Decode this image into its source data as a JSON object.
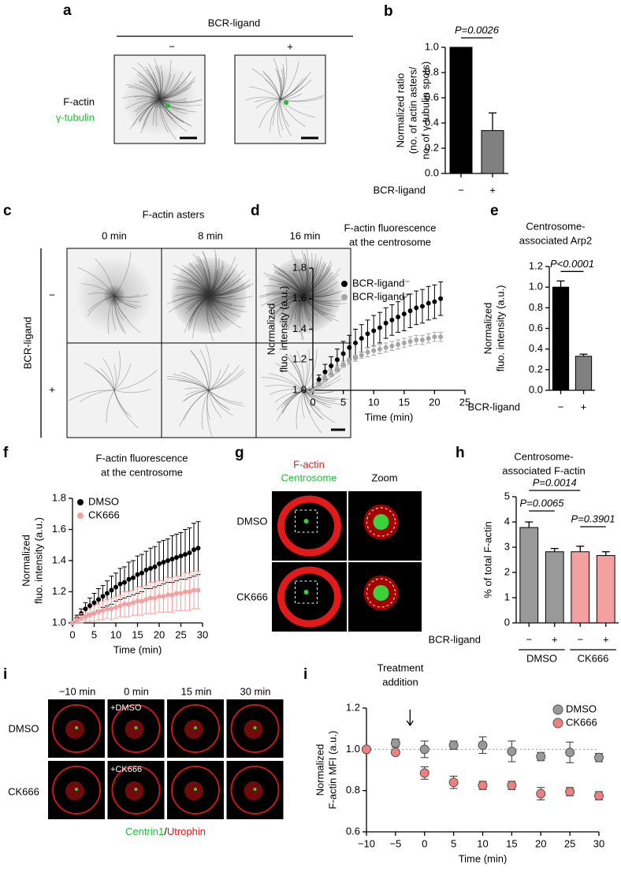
{
  "panels": {
    "a": {
      "letter": "a",
      "heading": "BCR-ligand",
      "conditions": [
        "−",
        "+"
      ],
      "stain1": "F-actin",
      "stain2": "γ-tubulin"
    },
    "c": {
      "letter": "c",
      "title": "F-actin asters",
      "times": [
        "0 min",
        "8 min",
        "16 min"
      ],
      "row_label": "BCR-ligand",
      "rows": [
        "−",
        "+"
      ]
    },
    "g": {
      "letter": "g",
      "stain1": "F-actin",
      "stain2": "Centrosome",
      "zoom": "Zoom",
      "rows": [
        "DMSO",
        "CK666"
      ]
    },
    "i": {
      "letter": "i",
      "times": [
        "−10 min",
        "0 min",
        "15 min",
        "30 min"
      ],
      "treatments": [
        "+DMSO",
        "+CK666"
      ],
      "rows": [
        "DMSO",
        "CK666"
      ],
      "stain1": "Centrin1",
      "separator": "/",
      "stain2": "Utrophin"
    }
  },
  "chart_data": [
    {
      "letter": "b",
      "type": "bar",
      "ylabel": [
        "Normalized ratio",
        "(no. of actin asters/",
        "no. of γ-tubulin spots)"
      ],
      "xlabel": "BCR-ligand",
      "categories": [
        "−",
        "+"
      ],
      "values": [
        1.0,
        0.34
      ],
      "errors": [
        0,
        0.14
      ],
      "colors": [
        "#000000",
        "#808080"
      ],
      "ylim": [
        0,
        1.0
      ],
      "yticks": [
        {
          "value": 0,
          "label": "0.0"
        },
        0.2,
        0.4,
        0.6,
        0.8,
        {
          "value": 1.0,
          "label": "1.0"
        }
      ],
      "annotations": [
        "P=0.0026"
      ]
    },
    {
      "letter": "d",
      "type": "scatter",
      "title": [
        "F-actin fluorescence",
        "at the centrosome"
      ],
      "xlabel": "Time (min)",
      "ylabel": [
        "Normalized",
        "fluo. intensity (a.u.)"
      ],
      "x": [
        0,
        1,
        2,
        3,
        4,
        5,
        6,
        7,
        8,
        9,
        10,
        11,
        12,
        13,
        14,
        15,
        16,
        17,
        18,
        19,
        20,
        21
      ],
      "series": [
        {
          "name": "BCR-ligand⁻",
          "color": "#000000",
          "values": [
            1.0,
            1.07,
            1.12,
            1.16,
            1.2,
            1.24,
            1.28,
            1.31,
            1.34,
            1.37,
            1.39,
            1.41,
            1.44,
            1.46,
            1.48,
            1.5,
            1.52,
            1.54,
            1.55,
            1.57,
            1.58,
            1.6
          ],
          "errors": [
            0,
            0.03,
            0.05,
            0.06,
            0.07,
            0.08,
            0.08,
            0.09,
            0.09,
            0.09,
            0.1,
            0.1,
            0.1,
            0.1,
            0.1,
            0.11,
            0.11,
            0.11,
            0.11,
            0.11,
            0.11,
            0.11
          ]
        },
        {
          "name": "BCR-ligand⁺",
          "color": "#a6a6a6",
          "values": [
            1.0,
            1.04,
            1.08,
            1.11,
            1.14,
            1.17,
            1.19,
            1.21,
            1.23,
            1.25,
            1.26,
            1.27,
            1.28,
            1.29,
            1.3,
            1.31,
            1.32,
            1.33,
            1.33,
            1.34,
            1.35,
            1.35
          ],
          "errors": [
            0,
            0.01,
            0.02,
            0.02,
            0.02,
            0.02,
            0.02,
            0.02,
            0.02,
            0.03,
            0.03,
            0.03,
            0.03,
            0.03,
            0.03,
            0.03,
            0.03,
            0.03,
            0.03,
            0.03,
            0.03,
            0.03
          ]
        }
      ],
      "xlim": [
        0,
        25
      ],
      "xticks": [
        0,
        5,
        10,
        15,
        20,
        25
      ],
      "ylim": [
        1.0,
        1.8
      ],
      "yticks": [
        {
          "value": 1.0,
          "label": "1.0"
        },
        1.2,
        1.4,
        1.6,
        1.8
      ],
      "legend": "upper left"
    },
    {
      "letter": "e",
      "type": "bar",
      "title": [
        "Centrosome-",
        "associated Arp2"
      ],
      "ylabel": [
        "Normalized",
        "fluo. intensity (a.u.)"
      ],
      "xlabel": "BCR-ligand",
      "categories": [
        "−",
        "+"
      ],
      "values": [
        1.0,
        0.33
      ],
      "errors": [
        0.06,
        0.02
      ],
      "colors": [
        "#000000",
        "#808080"
      ],
      "ylim": [
        0,
        1.2
      ],
      "yticks": [
        {
          "value": 0,
          "label": "0.0"
        },
        0.2,
        0.4,
        0.6,
        0.8,
        {
          "value": 1.0,
          "label": "1.0"
        },
        1.2
      ],
      "annotations": [
        "P<0.0001"
      ]
    },
    {
      "letter": "f",
      "type": "scatter",
      "title": [
        "F-actin fluorescence",
        "at the centrosome"
      ],
      "xlabel": "Time (min)",
      "ylabel": [
        "Normalized",
        "fluo. intensity (a.u.)"
      ],
      "x": [
        0,
        1,
        2,
        3,
        4,
        5,
        6,
        7,
        8,
        9,
        10,
        11,
        12,
        13,
        14,
        15,
        16,
        17,
        18,
        19,
        20,
        21,
        22,
        23,
        24,
        25,
        26,
        27,
        28,
        29
      ],
      "series": [
        {
          "name": "DMSO",
          "color": "#000000",
          "values": [
            1.0,
            1.03,
            1.06,
            1.09,
            1.11,
            1.13,
            1.15,
            1.17,
            1.19,
            1.21,
            1.23,
            1.25,
            1.26,
            1.28,
            1.29,
            1.31,
            1.32,
            1.34,
            1.35,
            1.36,
            1.38,
            1.39,
            1.4,
            1.41,
            1.42,
            1.43,
            1.44,
            1.45,
            1.47,
            1.48
          ],
          "errors": [
            0,
            0.02,
            0.03,
            0.04,
            0.05,
            0.06,
            0.07,
            0.07,
            0.08,
            0.09,
            0.09,
            0.1,
            0.1,
            0.11,
            0.11,
            0.12,
            0.12,
            0.12,
            0.13,
            0.13,
            0.14,
            0.14,
            0.14,
            0.15,
            0.15,
            0.15,
            0.16,
            0.16,
            0.17,
            0.17
          ]
        },
        {
          "name": "CK666",
          "color": "#f4a0a0",
          "values": [
            1.0,
            1.02,
            1.03,
            1.04,
            1.05,
            1.06,
            1.07,
            1.08,
            1.09,
            1.09,
            1.1,
            1.11,
            1.12,
            1.12,
            1.13,
            1.14,
            1.14,
            1.15,
            1.16,
            1.16,
            1.17,
            1.17,
            1.18,
            1.18,
            1.19,
            1.19,
            1.2,
            1.2,
            1.21,
            1.21
          ],
          "errors": [
            0,
            0.02,
            0.03,
            0.03,
            0.04,
            0.05,
            0.05,
            0.06,
            0.06,
            0.07,
            0.07,
            0.07,
            0.08,
            0.08,
            0.08,
            0.09,
            0.09,
            0.09,
            0.1,
            0.1,
            0.1,
            0.1,
            0.11,
            0.11,
            0.11,
            0.11,
            0.12,
            0.12,
            0.12,
            0.12
          ]
        }
      ],
      "xlim": [
        0,
        30
      ],
      "xticks": [
        0,
        5,
        10,
        15,
        20,
        25,
        30
      ],
      "ylim": [
        1.0,
        1.8
      ],
      "yticks": [
        {
          "value": 1.0,
          "label": "1.0"
        },
        1.2,
        1.4,
        1.6,
        1.8
      ],
      "legend": "upper left"
    },
    {
      "letter": "h",
      "type": "bar",
      "title": [
        "Centrosome-",
        "associated F-actin"
      ],
      "ylabel": [
        "% of total F-actin"
      ],
      "xlabel": "BCR-ligand",
      "categories": [
        "−",
        "+",
        "−",
        "+"
      ],
      "groups": [
        "DMSO",
        "CK666"
      ],
      "values": [
        3.78,
        2.82,
        2.82,
        2.67
      ],
      "errors": [
        0.22,
        0.13,
        0.22,
        0.15
      ],
      "colors": [
        "#999999",
        "#999999",
        "#f4a0a0",
        "#f4a0a0"
      ],
      "ylim": [
        0,
        5
      ],
      "yticks": [
        0,
        1,
        2,
        3,
        4,
        5
      ],
      "annotations": [
        "P=0.0014",
        "P=0.0065",
        "P=0.3901"
      ]
    },
    {
      "letter": "i",
      "type": "scatter",
      "title": [
        "Treatment",
        "addition"
      ],
      "xlabel": "Time (min)",
      "ylabel": [
        "Normalized",
        "F-actin MFI (a.u.)"
      ],
      "x": [
        -10,
        -5,
        0,
        5,
        10,
        15,
        20,
        25,
        30
      ],
      "series": [
        {
          "name": "DMSO",
          "color": "#999999",
          "values": [
            1.0,
            1.03,
            1.0,
            1.02,
            1.02,
            0.99,
            0.965,
            0.985,
            0.96
          ],
          "errors": [
            0,
            0.02,
            0.04,
            0.02,
            0.04,
            0.05,
            0.02,
            0.05,
            0.02
          ]
        },
        {
          "name": "CK666",
          "color": "#f08080",
          "values": [
            1.0,
            0.985,
            0.885,
            0.84,
            0.825,
            0.825,
            0.785,
            0.795,
            0.775
          ],
          "errors": [
            0,
            0,
            0.03,
            0.03,
            0.02,
            0.02,
            0.03,
            0.02,
            0.02
          ]
        }
      ],
      "xlim": [
        -10,
        30
      ],
      "xticks": [
        {
          "value": -10,
          "label": "−10"
        },
        {
          "value": -5,
          "label": "−5"
        },
        0,
        5,
        10,
        15,
        20,
        25,
        30
      ],
      "ylim": [
        0.6,
        1.2
      ],
      "yticks": [
        0.6,
        0.8,
        {
          "value": 1.0,
          "label": "1.0"
        },
        1.2
      ],
      "reference_line": 1.0,
      "legend": "upper right"
    }
  ]
}
